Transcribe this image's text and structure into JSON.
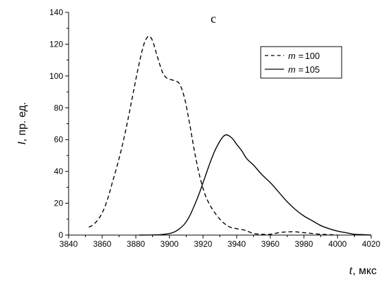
{
  "chart_data": {
    "type": "line",
    "panel_label": "c",
    "xlabel": {
      "symbol": "t",
      "unit": ", мкс"
    },
    "ylabel": {
      "symbol": "I",
      "unit": ", пр. ед."
    },
    "xlim": [
      3840,
      4020
    ],
    "ylim": [
      0,
      140
    ],
    "x_ticks": [
      3840,
      3860,
      3880,
      3900,
      3920,
      3940,
      3960,
      3980,
      4000,
      4020
    ],
    "y_ticks": [
      0,
      20,
      40,
      60,
      80,
      100,
      120,
      140
    ],
    "legend_position": "top-right",
    "series": [
      {
        "name": "m = 100",
        "legend_var": "m",
        "legend_value": "100",
        "style": "dashed",
        "color": "#000000",
        "x": [
          3852,
          3854,
          3857,
          3860,
          3863,
          3866,
          3870,
          3874,
          3878,
          3881,
          3884,
          3886,
          3888,
          3890,
          3892,
          3894,
          3896,
          3898,
          3900,
          3903,
          3906,
          3909,
          3912,
          3915,
          3918,
          3921,
          3924,
          3927,
          3930,
          3933,
          3936,
          3940,
          3945,
          3950,
          3955,
          3960,
          3965,
          3970,
          3975,
          3980,
          3985,
          3990,
          3995,
          4000
        ],
        "y": [
          5,
          6,
          9,
          14,
          22,
          33,
          48,
          66,
          87,
          103,
          117,
          123,
          125,
          122,
          115,
          108,
          102,
          99,
          98,
          97,
          95,
          86,
          70,
          52,
          37,
          26,
          19,
          14,
          10,
          7,
          5,
          4,
          3,
          1,
          0.5,
          0.5,
          1.5,
          2,
          2,
          1.5,
          1,
          0.5,
          0.3,
          0
        ]
      },
      {
        "name": "m = 105",
        "legend_var": "m",
        "legend_value": "105",
        "style": "solid",
        "color": "#000000",
        "x": [
          3882,
          3890,
          3895,
          3900,
          3903,
          3906,
          3909,
          3912,
          3915,
          3918,
          3921,
          3924,
          3927,
          3930,
          3932,
          3934,
          3936,
          3938,
          3940,
          3943,
          3946,
          3950,
          3955,
          3960,
          3965,
          3970,
          3975,
          3980,
          3985,
          3990,
          3995,
          4000,
          4005,
          4010,
          4015,
          4020
        ],
        "y": [
          0,
          0.1,
          0.3,
          1,
          2,
          4,
          7,
          12,
          19,
          27,
          36,
          45,
          53,
          59,
          62,
          63,
          62,
          60,
          57,
          53,
          48,
          44,
          38,
          33,
          27,
          21,
          16,
          12,
          9,
          6,
          4,
          2.5,
          1.5,
          0.5,
          0.3,
          0
        ]
      }
    ]
  }
}
